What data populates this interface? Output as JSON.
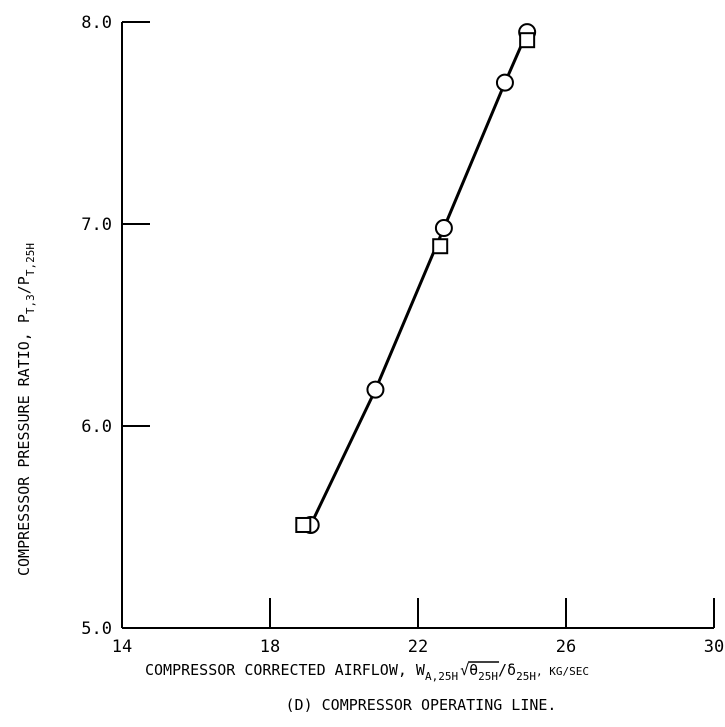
{
  "chart_data": {
    "type": "scatter",
    "title": "",
    "caption": "(D) COMPRESSOR OPERATING LINE.",
    "xlabel": {
      "prefix": "COMPRESSOR CORRECTED AIRFLOW, W",
      "sub1": "A,25H",
      "theta": "θ",
      "sub2": "25H",
      "slash": "/δ",
      "sub3": "25H",
      "unit": ", KG/SEC"
    },
    "ylabel": {
      "prefix": "COMPRESSSOR PRESSURE RATIO, P",
      "sub1": "T,3",
      "mid": "/P",
      "sub2": "T,25H"
    },
    "xlim": [
      14,
      30
    ],
    "ylim": [
      5.0,
      8.0
    ],
    "x_ticks": [
      14,
      18,
      22,
      26,
      30
    ],
    "x_tick_labels": [
      "14",
      "18",
      "22",
      "26",
      "30"
    ],
    "y_ticks": [
      5.0,
      6.0,
      7.0,
      8.0
    ],
    "y_tick_labels": [
      "5.0",
      "6.0",
      "7.0",
      "8.0"
    ],
    "grid": false,
    "series": [
      {
        "marker": "circle",
        "x": [
          19.1,
          20.85,
          22.7,
          24.35,
          24.95
        ],
        "y": [
          5.51,
          6.18,
          6.98,
          7.7,
          7.95
        ]
      },
      {
        "marker": "square",
        "x": [
          18.9,
          22.6,
          24.95
        ],
        "y": [
          5.51,
          6.89,
          7.91
        ]
      }
    ],
    "fit_line": {
      "x": [
        19.1,
        20.85,
        22.7,
        24.35,
        24.95
      ],
      "y": [
        5.51,
        6.18,
        6.98,
        7.7,
        7.95
      ]
    }
  }
}
